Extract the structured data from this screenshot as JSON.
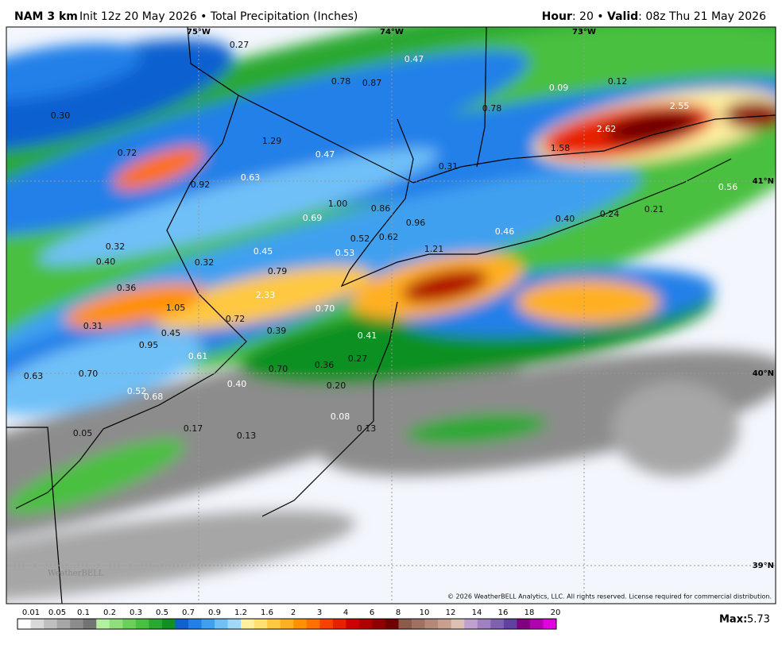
{
  "header": {
    "model": "NAM 3 km",
    "description": "Init 12z 20 May 2026 • Total Precipitation (Inches)",
    "hour_label": "Hour",
    "hour": ": 20 •",
    "valid_label": "Valid",
    "valid": ": 08z Thu 21 May 2026"
  },
  "map": {
    "lon_labels": [
      "75°W",
      "74°W",
      "73°W"
    ],
    "lat_labels": [
      "41°N",
      "40°N",
      "39°N"
    ],
    "point_values": [
      "0.27",
      "0.47",
      "0.78",
      "0.87",
      "0.09",
      "0.12",
      "0.30",
      "0.78",
      "2.55",
      "2.62",
      "1.29",
      "0.72",
      "0.47",
      "1.58",
      "0.31",
      "0.63",
      "0.92",
      "0.56",
      "1.00",
      "0.86",
      "0.69",
      "0.96",
      "0.40",
      "0.24",
      "0.21",
      "0.52",
      "0.62",
      "0.46",
      "0.32",
      "1.21",
      "0.45",
      "0.53",
      "0.40",
      "0.32",
      "0.79",
      "0.36",
      "2.33",
      "1.05",
      "0.70",
      "0.72",
      "0.31",
      "0.39",
      "0.45",
      "0.41",
      "0.95",
      "0.61",
      "0.27",
      "0.36",
      "0.70",
      "0.63",
      "0.70",
      "0.40",
      "0.20",
      "0.52",
      "0.68",
      "0.08",
      "0.13",
      "0.17",
      "0.05",
      "0.13"
    ],
    "logo": "WeatherBELL",
    "copyright": "© 2026 WeatherBELL Analytics, LLC. All rights reserved. License required for commercial distribution."
  },
  "colorbar": {
    "tick_labels": [
      "0.01",
      "0.05",
      "0.1",
      "0.2",
      "0.3",
      "0.5",
      "0.7",
      "0.9",
      "1.2",
      "1.6",
      "2",
      "3",
      "4",
      "6",
      "8",
      "10",
      "12",
      "14",
      "16",
      "18",
      "20"
    ],
    "colors": [
      "#ffffff",
      "#d9d9d9",
      "#bfbfbf",
      "#a6a6a6",
      "#8c8c8c",
      "#737373",
      "#b3f0a0",
      "#8fe07a",
      "#6bd05a",
      "#48c040",
      "#2aa830",
      "#109020",
      "#1060d0",
      "#2080e8",
      "#40a0f0",
      "#70c0f8",
      "#a0d8fa",
      "#fff0a0",
      "#ffe070",
      "#ffc840",
      "#ffb020",
      "#ff9000",
      "#ff7000",
      "#f84000",
      "#e82000",
      "#d00000",
      "#b00000",
      "#900000",
      "#700000",
      "#8c5a4a",
      "#a07060",
      "#b48878",
      "#c8a090",
      "#dcc0b4",
      "#c0a0d0",
      "#a080c0",
      "#8060b0",
      "#6040a0",
      "#800080",
      "#b000b0",
      "#e000e0"
    ],
    "max_label": "Max:",
    "max_value": "5.73"
  }
}
